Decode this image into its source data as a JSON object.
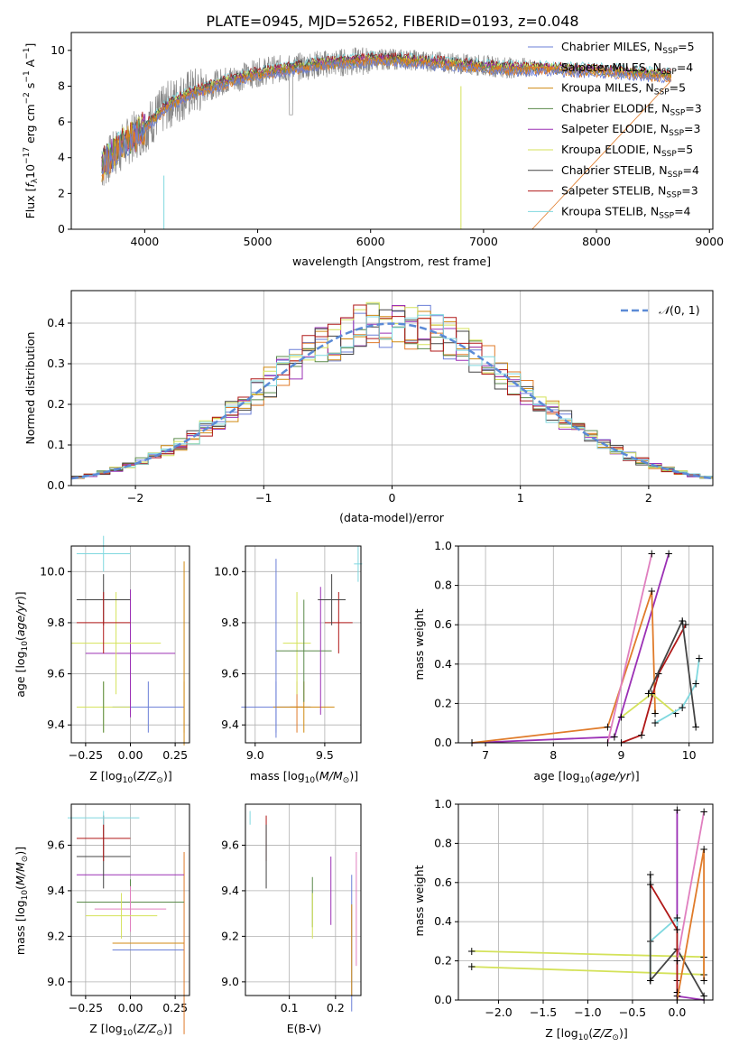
{
  "title": "PLATE=0945, MJD=52652, FIBERID=0193, z=0.048",
  "legend": [
    {
      "label": "Chabrier MILES, N",
      "sub": "SSP",
      "tail": "=5",
      "color": "#6b7fd7"
    },
    {
      "label": "Salpeter MILES, N",
      "sub": "SSP",
      "tail": "=4",
      "color": "#e07b2a"
    },
    {
      "label": "Kroupa MILES, N",
      "sub": "SSP",
      "tail": "=5",
      "color": "#d08a12"
    },
    {
      "label": "Chabrier ELODIE, N",
      "sub": "SSP",
      "tail": "=3",
      "color": "#5a8a4a"
    },
    {
      "label": "Salpeter ELODIE, N",
      "sub": "SSP",
      "tail": "=3",
      "color": "#9b30b5"
    },
    {
      "label": "Kroupa ELODIE, N",
      "sub": "SSP",
      "tail": "=5",
      "color": "#d4e25a"
    },
    {
      "label": "Chabrier STELIB, N",
      "sub": "SSP",
      "tail": "=4",
      "color": "#444444"
    },
    {
      "label": "Salpeter STELIB, N",
      "sub": "SSP",
      "tail": "=3",
      "color": "#b01818"
    },
    {
      "label": "Kroupa STELIB, N",
      "sub": "SSP",
      "tail": "=4",
      "color": "#7fd8df"
    }
  ],
  "panel_labels": {
    "spec_xlabel": "wavelength [Angstrom, rest frame]",
    "spec_ylabel": "Flux [f",
    "hist_xlabel": "(data-model)/error",
    "hist_ylabel": "Normed distribution",
    "hist_legend": "N(0, 1)",
    "age_label": "age  [log",
    "z_label": "Z [log",
    "mass_label": "mass [log",
    "massweight_label": "mass weight",
    "ebv_label": "E(B-V)"
  },
  "chart_data": [
    {
      "type": "line",
      "title": "PLATE=0945, MJD=52652, FIBERID=0193, z=0.048",
      "xlabel": "wavelength [Angstrom, rest frame]",
      "ylabel": "Flux [f_lambda 10^-17 erg cm^-2 s^-1 A^-1]",
      "xlim": [
        3350,
        9030
      ],
      "ylim": [
        0,
        11
      ],
      "xticks": [
        4000,
        5000,
        6000,
        7000,
        8000,
        9000
      ],
      "yticks": [
        0,
        2,
        4,
        6,
        8,
        10
      ],
      "data_x": [
        3620,
        3700,
        3800,
        3900,
        4000,
        4100,
        4200,
        4300,
        4400,
        4500,
        4700,
        4900,
        5100,
        5300,
        5500,
        5700,
        5900,
        6100,
        6300,
        6500,
        6700,
        6900,
        7100,
        7300,
        7420
      ],
      "data_y": [
        3.5,
        4.0,
        4.6,
        5.2,
        5.6,
        6.3,
        6.9,
        7.3,
        7.6,
        7.8,
        8.3,
        8.6,
        8.9,
        9.0,
        9.2,
        9.3,
        9.4,
        9.5,
        9.5,
        9.4,
        9.3,
        9.2,
        9.1,
        9.0,
        9.0
      ],
      "model_x": [
        3620,
        3800,
        4000,
        4200,
        4400,
        4600,
        4800,
        5000,
        5200,
        5400,
        5600,
        5800,
        6000,
        6200,
        6400,
        6600,
        6800,
        7000,
        7200,
        7400,
        7600,
        7800,
        8000,
        8200,
        8400,
        8600
      ],
      "model_y": [
        3.6,
        4.7,
        5.7,
        6.9,
        7.6,
        8.0,
        8.4,
        8.7,
        8.9,
        9.1,
        9.3,
        9.4,
        9.5,
        9.5,
        9.4,
        9.3,
        9.2,
        9.1,
        9.0,
        9.0,
        9.0,
        8.9,
        8.9,
        8.8,
        8.7,
        8.6
      ]
    },
    {
      "type": "bar",
      "xlabel": "(data-model)/error",
      "ylabel": "Normed distribution",
      "xlim": [
        -2.5,
        2.5
      ],
      "ylim": [
        0,
        0.48
      ],
      "xticks": [
        -2,
        -1,
        0,
        1,
        2
      ],
      "yticks": [
        0.0,
        0.1,
        0.2,
        0.3,
        0.4
      ],
      "bin_width": 0.1,
      "gaussian_label": "N(0, 1)"
    },
    {
      "type": "scatter",
      "ylabel": "age  [log10(age/yr)]",
      "xlabel": "Z [log10(Z/Z_sun)]",
      "xlim": [
        -0.33,
        0.33
      ],
      "ylim": [
        9.33,
        10.1
      ],
      "xticks": [
        -0.25,
        0.0,
        0.25
      ],
      "xticklabels": [
        "−0.25",
        "0.00",
        "0.25"
      ],
      "yticks": [
        9.4,
        9.6,
        9.8,
        10.0
      ],
      "points": [
        {
          "x": 0.1,
          "y": 9.47,
          "xerr": 0.2,
          "yerr": 0.1,
          "color": "#6b7fd7"
        },
        {
          "x": 0.3,
          "y": 9.47,
          "xerr": 0.0,
          "yerr": 0.1,
          "color": "#e07b2a"
        },
        {
          "x": 0.3,
          "y": 9.68,
          "xerr": 0.0,
          "yerr": 0.36,
          "color": "#d08a12"
        },
        {
          "x": -0.15,
          "y": 9.47,
          "xerr": 0.15,
          "yerr": 0.1,
          "color": "#d4e25a"
        },
        {
          "x": -0.15,
          "y": 9.47,
          "xerr": 0.0,
          "yerr": 0.1,
          "color": "#5a8a4a"
        },
        {
          "x": 0.0,
          "y": 9.68,
          "xerr": 0.25,
          "yerr": 0.25,
          "color": "#9b30b5"
        },
        {
          "x": -0.08,
          "y": 9.72,
          "xerr": 0.25,
          "yerr": 0.2,
          "color": "#d4e25a"
        },
        {
          "x": -0.15,
          "y": 9.89,
          "xerr": 0.15,
          "yerr": 0.1,
          "color": "#444444"
        },
        {
          "x": -0.15,
          "y": 9.8,
          "xerr": 0.15,
          "yerr": 0.12,
          "color": "#b01818"
        },
        {
          "x": -0.15,
          "y": 10.07,
          "xerr": 0.15,
          "yerr": 0.07,
          "color": "#7fd8df"
        }
      ]
    }
  ]
}
